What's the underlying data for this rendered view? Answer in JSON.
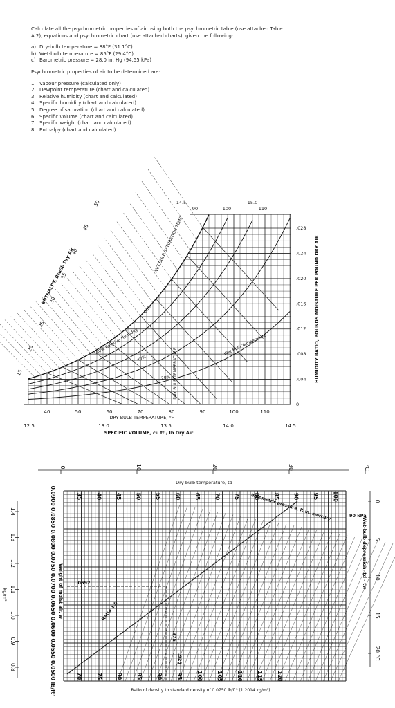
{
  "intro": "Calculate all the psychrometric properties of air using both the psychrometric table (use attached Table A.2), equations and psychrometric chart (use attached charts), given the following:",
  "givens": [
    {
      "marker": "a)",
      "text": "Dry-bulb temperature = 88°F (31.1°C)"
    },
    {
      "marker": "b)",
      "text": "Wet-bulb temperature = 85°F (29.4°C)"
    },
    {
      "marker": "c)",
      "text": "Barometric pressure = 28.0 in. Hg (94.55 kPa)"
    }
  ],
  "heading": "Psychrometric properties of air to be determined are:",
  "properties": [
    {
      "marker": "1.",
      "text": "Vapour pressure (calculated only)"
    },
    {
      "marker": "2.",
      "text": "Dewpoint temperature (chart and calculated)"
    },
    {
      "marker": "3.",
      "text": "Relative humidity (chart and calculated)"
    },
    {
      "marker": "4.",
      "text": "Specific humidity (chart and calculated)"
    },
    {
      "marker": "5.",
      "text": "Degree of saturation (chart and calculated)"
    },
    {
      "marker": "6.",
      "text": "Specific volume (chart and calculated)"
    },
    {
      "marker": "7.",
      "text": "Specific weight (chart and calculated)"
    },
    {
      "marker": "8.",
      "text": "Enthalpy (chart and calculated)"
    }
  ],
  "chart1": {
    "x_label": "DRY BULB TEMPERATURE, °F",
    "x_ticks": [
      "40",
      "50",
      "60",
      "70",
      "80",
      "90",
      "100",
      "110"
    ],
    "volume_label": "SPECIFIC VOLUME, cu ft / lb Dry Air",
    "volume_ticks": [
      "12.5",
      "13.0",
      "13.5",
      "14.0",
      "14.5"
    ],
    "top_ticks": [
      "14.5",
      "90",
      "100",
      "15.0",
      "110"
    ],
    "humidity_label": "HUMIDITY RATIO, POUNDS MOISTURE PER POUND DRY AIR",
    "humidity_ticks": [
      ".028",
      ".024",
      ".020",
      ".016",
      ".012",
      ".008",
      ".004",
      "0"
    ],
    "enthalpy_label": "ENTHALPY, Btu/lb Dry Air",
    "enthalpy_ticks": [
      "15",
      "20",
      "25",
      "30",
      "35",
      "40",
      "45",
      "50"
    ],
    "rh_labels": [
      "80%",
      "60% Relative Humidity",
      "40%",
      "20%"
    ],
    "saturation_label": "WET BULB SATURATION TEMP",
    "dry_bulb_vertical": "DRY BULB TEMPERATURE",
    "wet_bulb_label": "Wet Bulb Temperature"
  },
  "chart2": {
    "top_ticks": [
      "0",
      "10",
      "20",
      "30",
      "°C"
    ],
    "top_label": "Dry-bulb temperature, td",
    "f_ticks_top": [
      "35",
      "40",
      "45",
      "50",
      "55",
      "60",
      "65",
      "70",
      "75",
      "80",
      "85",
      "90",
      "95",
      "100"
    ],
    "f_ticks_bottom": [
      "70",
      "75",
      "80",
      "85",
      "90",
      "95",
      "100",
      "105",
      "110",
      "115",
      "120"
    ],
    "weight_scale": "0.0900 0.0850 0.0800 0.0750 0.0700 0.0650 0.0600 0.0550 0.0500 lb/ft³",
    "weight_label": "Weight of moist air, w",
    "kg_ticks": [
      "1.4",
      "1.3",
      "1.2",
      "1.1",
      "1.0",
      "0.9",
      "0.8"
    ],
    "kg_unit": "kg/m³",
    "bottom_label": "Ratio of density to standard density of 0.0750 lb/ft³ (1.2014 kg/m³)",
    "pressure_label": "Barometric pressure, P, in. mercury",
    "wb_label": "Wet-bulb depression, td - tw",
    "wb_ticks": [
      "0",
      "5",
      "10",
      "15",
      "20 °C"
    ],
    "ratio_label": "Ratio 1.0",
    "annotations": [
      ".0692",
      ".975",
      ".923",
      "90 kPa"
    ]
  }
}
